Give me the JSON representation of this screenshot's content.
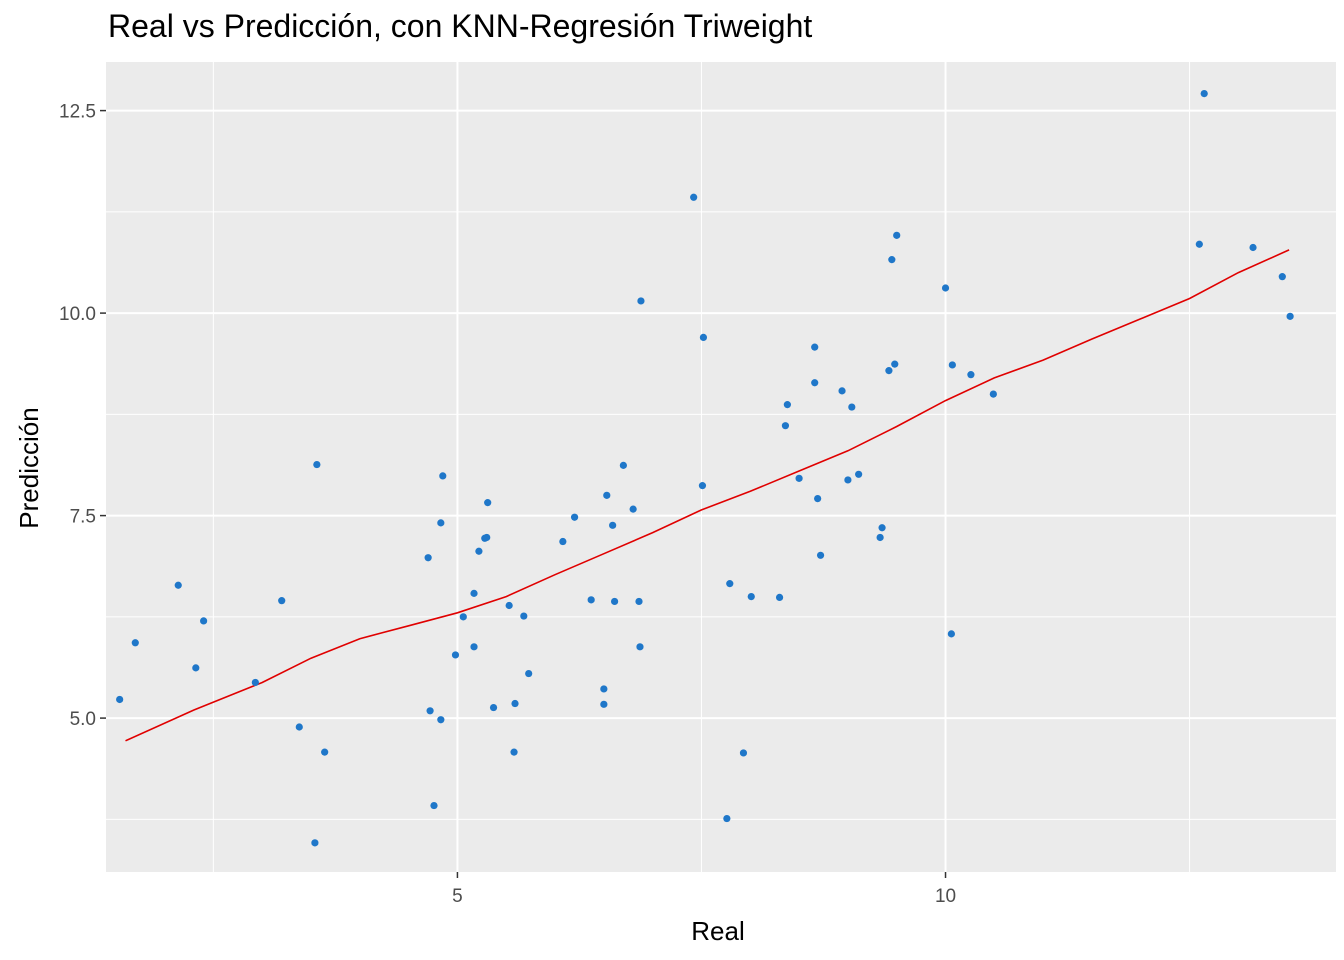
{
  "chart_data": {
    "type": "scatter",
    "title": "Real vs Predicción, con KNN-Regresión Triweight",
    "xlabel": "Real",
    "ylabel": "Predicción",
    "xlim": [
      1.4,
      14.0
    ],
    "ylim": [
      3.1,
      13.1
    ],
    "x_ticks": [
      5,
      10
    ],
    "x_tick_labels": [
      "5",
      "10"
    ],
    "x_minor_ticks": [
      2.5,
      7.5,
      12.5
    ],
    "y_ticks": [
      5.0,
      7.5,
      10.0,
      12.5
    ],
    "y_tick_labels": [
      "5.0",
      "7.5",
      "10.0",
      "12.5"
    ],
    "y_minor_ticks": [
      3.75,
      6.25,
      8.75,
      11.25
    ],
    "grid": true,
    "panel_background": "#ebebeb",
    "point_color": "#1f77c9",
    "line_color": "#e00000",
    "series": [
      {
        "type": "scatter",
        "points": [
          [
            1.54,
            5.23
          ],
          [
            1.7,
            5.93
          ],
          [
            2.14,
            6.64
          ],
          [
            2.32,
            5.62
          ],
          [
            2.4,
            6.2
          ],
          [
            2.93,
            5.44
          ],
          [
            3.2,
            6.45
          ],
          [
            3.38,
            4.89
          ],
          [
            3.54,
            3.46
          ],
          [
            3.56,
            8.13
          ],
          [
            3.64,
            4.58
          ],
          [
            4.7,
            6.98
          ],
          [
            4.72,
            5.09
          ],
          [
            4.76,
            3.92
          ],
          [
            4.83,
            7.41
          ],
          [
            4.83,
            4.98
          ],
          [
            4.85,
            7.99
          ],
          [
            4.98,
            5.78
          ],
          [
            5.06,
            6.25
          ],
          [
            5.17,
            6.54
          ],
          [
            5.17,
            5.88
          ],
          [
            5.22,
            7.06
          ],
          [
            5.28,
            7.22
          ],
          [
            5.3,
            7.23
          ],
          [
            5.31,
            7.66
          ],
          [
            5.37,
            5.13
          ],
          [
            5.53,
            6.39
          ],
          [
            5.58,
            4.58
          ],
          [
            5.59,
            5.18
          ],
          [
            5.68,
            6.26
          ],
          [
            5.73,
            5.55
          ],
          [
            6.08,
            7.18
          ],
          [
            6.2,
            7.48
          ],
          [
            6.37,
            6.46
          ],
          [
            6.5,
            5.36
          ],
          [
            6.5,
            5.17
          ],
          [
            6.53,
            7.75
          ],
          [
            6.59,
            7.38
          ],
          [
            6.61,
            6.44
          ],
          [
            6.7,
            8.12
          ],
          [
            6.8,
            7.58
          ],
          [
            6.86,
            6.44
          ],
          [
            6.87,
            5.88
          ],
          [
            6.88,
            10.15
          ],
          [
            7.42,
            11.43
          ],
          [
            7.51,
            7.87
          ],
          [
            7.52,
            9.7
          ],
          [
            7.76,
            3.76
          ],
          [
            7.79,
            6.66
          ],
          [
            7.93,
            4.57
          ],
          [
            8.01,
            6.5
          ],
          [
            8.3,
            6.49
          ],
          [
            8.36,
            8.61
          ],
          [
            8.38,
            8.87
          ],
          [
            8.5,
            7.96
          ],
          [
            8.66,
            9.58
          ],
          [
            8.66,
            9.14
          ],
          [
            8.69,
            7.71
          ],
          [
            8.72,
            7.01
          ],
          [
            8.94,
            9.04
          ],
          [
            9.0,
            7.94
          ],
          [
            9.04,
            8.84
          ],
          [
            9.11,
            8.01
          ],
          [
            9.33,
            7.23
          ],
          [
            9.35,
            7.35
          ],
          [
            9.42,
            9.29
          ],
          [
            9.45,
            10.66
          ],
          [
            9.48,
            9.37
          ],
          [
            9.5,
            10.96
          ],
          [
            10.0,
            10.31
          ],
          [
            10.06,
            6.04
          ],
          [
            10.07,
            9.36
          ],
          [
            10.26,
            9.24
          ],
          [
            10.49,
            9.0
          ],
          [
            12.6,
            10.85
          ],
          [
            12.65,
            12.71
          ],
          [
            13.15,
            10.81
          ],
          [
            13.45,
            10.45
          ],
          [
            13.53,
            9.96
          ]
        ]
      },
      {
        "type": "line",
        "points": [
          [
            1.6,
            4.72
          ],
          [
            2.3,
            5.1
          ],
          [
            3.0,
            5.44
          ],
          [
            3.5,
            5.74
          ],
          [
            4.0,
            5.98
          ],
          [
            4.5,
            6.14
          ],
          [
            5.0,
            6.3
          ],
          [
            5.5,
            6.5
          ],
          [
            6.0,
            6.77
          ],
          [
            6.5,
            7.03
          ],
          [
            7.0,
            7.29
          ],
          [
            7.5,
            7.57
          ],
          [
            8.0,
            7.8
          ],
          [
            8.5,
            8.05
          ],
          [
            9.0,
            8.3
          ],
          [
            9.5,
            8.6
          ],
          [
            10.0,
            8.92
          ],
          [
            10.5,
            9.2
          ],
          [
            11.0,
            9.42
          ],
          [
            11.5,
            9.68
          ],
          [
            12.0,
            9.93
          ],
          [
            12.5,
            10.18
          ],
          [
            13.0,
            10.5
          ],
          [
            13.52,
            10.78
          ]
        ]
      }
    ]
  }
}
